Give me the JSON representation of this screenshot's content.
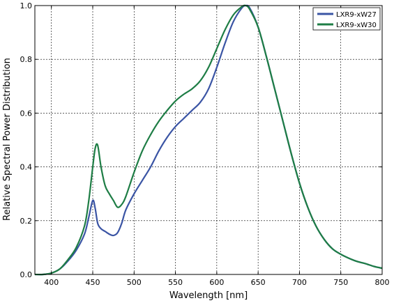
{
  "chart_data": {
    "type": "line",
    "xlabel": "Wavelength [nm]",
    "ylabel": "Relative Spectral Power Distribution",
    "xlim": [
      380,
      800
    ],
    "ylim": [
      0.0,
      1.0
    ],
    "xticks": [
      400,
      450,
      500,
      550,
      600,
      650,
      700,
      750,
      800
    ],
    "yticks": [
      0.0,
      0.2,
      0.4,
      0.6,
      0.8,
      1.0
    ],
    "xtick_labels": [
      "400",
      "450",
      "500",
      "550",
      "600",
      "650",
      "700",
      "750",
      "800"
    ],
    "ytick_labels": [
      "0.0",
      "0.2",
      "0.4",
      "0.6",
      "0.8",
      "1.0"
    ],
    "grid": true,
    "legend_position": "top-right",
    "series": [
      {
        "name": "LXR9-xW27",
        "color": "#3a54a4",
        "x": [
          380,
          390,
          400,
          410,
          420,
          430,
          440,
          445,
          450,
          453,
          456,
          460,
          465,
          470,
          475,
          480,
          485,
          490,
          500,
          510,
          520,
          530,
          540,
          550,
          560,
          570,
          580,
          590,
          600,
          610,
          620,
          630,
          635,
          640,
          650,
          660,
          670,
          680,
          690,
          700,
          710,
          720,
          730,
          740,
          750,
          760,
          770,
          780,
          790,
          800
        ],
        "y": [
          0.0,
          0.0,
          0.005,
          0.02,
          0.05,
          0.09,
          0.15,
          0.21,
          0.275,
          0.245,
          0.19,
          0.17,
          0.16,
          0.15,
          0.145,
          0.155,
          0.19,
          0.24,
          0.3,
          0.35,
          0.4,
          0.46,
          0.51,
          0.55,
          0.58,
          0.61,
          0.64,
          0.69,
          0.77,
          0.86,
          0.94,
          0.99,
          1.0,
          0.99,
          0.92,
          0.81,
          0.69,
          0.57,
          0.45,
          0.34,
          0.25,
          0.18,
          0.13,
          0.095,
          0.075,
          0.06,
          0.048,
          0.04,
          0.03,
          0.023
        ]
      },
      {
        "name": "LXR9-xW30",
        "color": "#1e7d45",
        "x": [
          380,
          390,
          400,
          410,
          420,
          430,
          440,
          445,
          450,
          453,
          456,
          460,
          465,
          470,
          475,
          480,
          485,
          490,
          500,
          510,
          520,
          530,
          540,
          550,
          560,
          570,
          580,
          590,
          600,
          610,
          620,
          630,
          635,
          640,
          650,
          660,
          670,
          680,
          690,
          700,
          710,
          720,
          730,
          740,
          750,
          760,
          770,
          780,
          790,
          800
        ],
        "y": [
          0.0,
          0.0,
          0.005,
          0.02,
          0.055,
          0.1,
          0.18,
          0.27,
          0.4,
          0.47,
          0.48,
          0.4,
          0.33,
          0.3,
          0.275,
          0.25,
          0.26,
          0.29,
          0.38,
          0.46,
          0.52,
          0.57,
          0.61,
          0.645,
          0.67,
          0.69,
          0.72,
          0.77,
          0.84,
          0.91,
          0.965,
          0.995,
          1.0,
          0.985,
          0.92,
          0.81,
          0.69,
          0.57,
          0.45,
          0.34,
          0.25,
          0.18,
          0.13,
          0.095,
          0.075,
          0.06,
          0.048,
          0.04,
          0.03,
          0.023
        ]
      }
    ]
  }
}
